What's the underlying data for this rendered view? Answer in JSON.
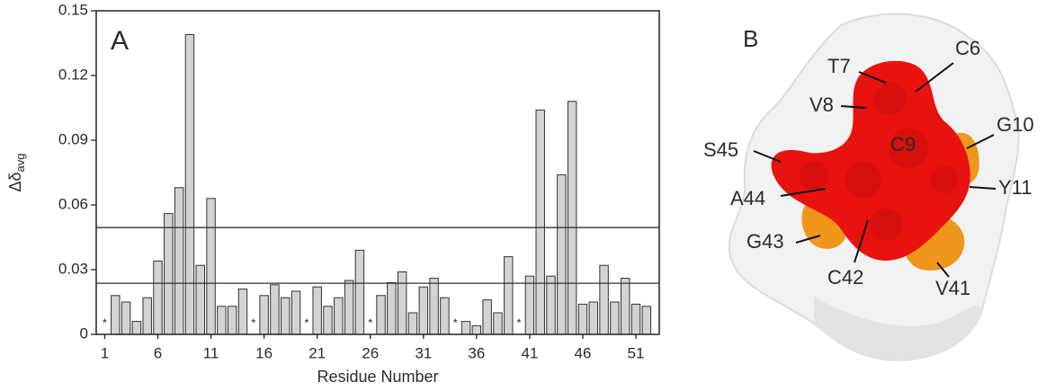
{
  "chart_data": {
    "type": "bar",
    "panel_label": "A",
    "x": [
      1,
      2,
      3,
      4,
      5,
      6,
      7,
      8,
      9,
      10,
      11,
      12,
      13,
      14,
      15,
      16,
      17,
      18,
      19,
      20,
      21,
      22,
      23,
      24,
      25,
      26,
      27,
      28,
      29,
      30,
      31,
      32,
      33,
      34,
      35,
      36,
      37,
      38,
      39,
      40,
      41,
      42,
      43,
      44,
      45,
      46,
      47,
      48,
      49,
      50,
      51,
      52
    ],
    "values": [
      null,
      0.018,
      0.015,
      0.006,
      0.017,
      0.034,
      0.056,
      0.068,
      0.139,
      0.032,
      0.063,
      0.013,
      0.013,
      0.021,
      null,
      0.018,
      0.023,
      0.017,
      0.02,
      null,
      0.022,
      0.013,
      0.017,
      0.025,
      0.039,
      null,
      0.018,
      0.024,
      0.029,
      0.01,
      0.022,
      0.026,
      0.017,
      null,
      0.006,
      0.004,
      0.016,
      0.01,
      0.036,
      null,
      0.027,
      0.104,
      0.027,
      0.074,
      0.108,
      0.014,
      0.015,
      0.032,
      0.015,
      0.026,
      0.014,
      0.013
    ],
    "missing_marker": "*",
    "color": "#d3d3d3",
    "xlabel": "Residue Number",
    "ylabel": "Δδ",
    "ylabel_sub": "avg",
    "xlim": [
      0.2,
      53.2
    ],
    "ylim": [
      0,
      0.15
    ],
    "xticks": [
      1,
      6,
      11,
      16,
      21,
      26,
      31,
      36,
      41,
      46,
      51
    ],
    "yticks": [
      0,
      0.03,
      0.06,
      0.09,
      0.12,
      0.15
    ],
    "hlines": [
      0.0495,
      0.0237
    ]
  },
  "panel_b": {
    "label": "B",
    "residues": [
      "C6",
      "T7",
      "V8",
      "C9",
      "G10",
      "Y11",
      "S45",
      "A44",
      "G43",
      "C42",
      "V41"
    ]
  }
}
